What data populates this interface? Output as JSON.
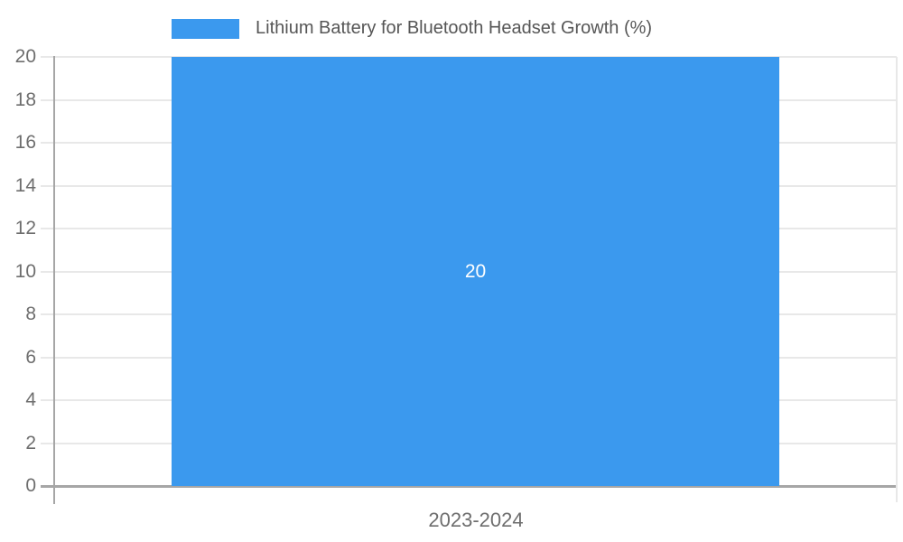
{
  "legend": {
    "label": "Lithium Battery for Bluetooth Headset Growth (%)"
  },
  "chart_data": {
    "type": "bar",
    "title": "Lithium Battery for Bluetooth Headset Growth (%)",
    "categories": [
      "2023-2024"
    ],
    "series": [
      {
        "name": "Lithium Battery for Bluetooth Headset Growth (%)",
        "values": [
          20
        ]
      }
    ],
    "values": [
      20
    ],
    "bar_label": "20",
    "xlabel": "",
    "ylabel": "",
    "ylim": [
      0,
      20
    ],
    "yticks": [
      0,
      2,
      4,
      6,
      8,
      10,
      12,
      14,
      16,
      18,
      20
    ],
    "grid": true,
    "legend_position": "top-center",
    "colors": {
      "bar": "#3b99ee",
      "bar_label_text": "#ffffff",
      "gridline": "#e8e8e8",
      "axis_line": "#a6a6a6",
      "tick_label_text": "#6e6e6e",
      "legend_text": "#565656",
      "background": "#ffffff"
    }
  }
}
